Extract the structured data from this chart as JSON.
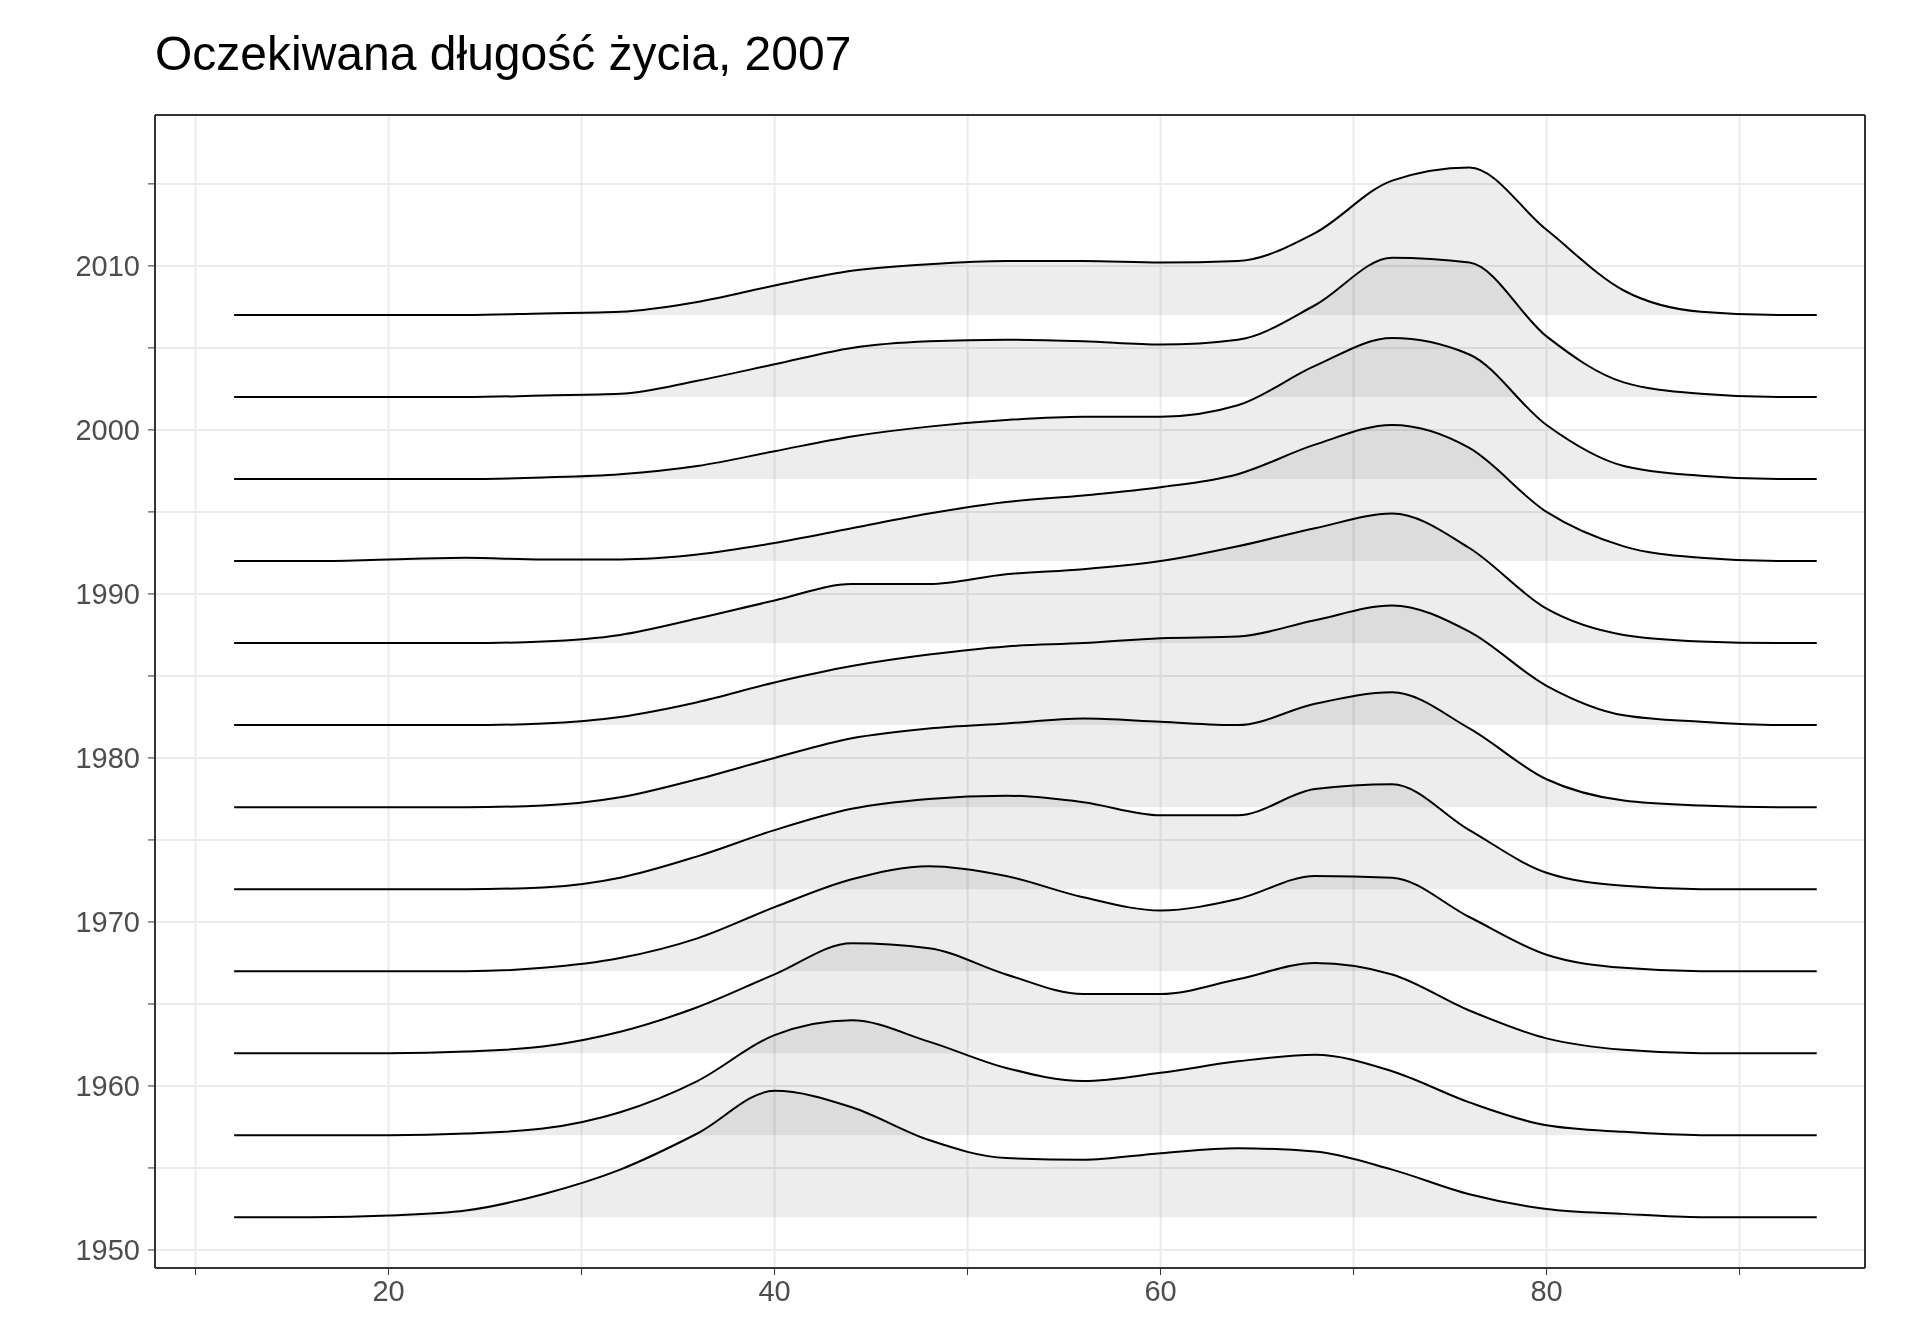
{
  "chart_data": {
    "type": "area",
    "title": "Oczekiwana długość życia, 2007",
    "x": [
      12,
      16,
      20,
      24,
      28,
      32,
      36,
      40,
      44,
      48,
      52,
      56,
      60,
      64,
      68,
      72,
      76,
      80,
      84,
      88,
      92,
      94
    ],
    "series": [
      {
        "color": "#000000",
        "values": [
          1952,
          1952,
          1952.1,
          1952.4,
          1953.4,
          1954.9,
          1957.1,
          1959.7,
          1958.7,
          1956.7,
          1955.6,
          1955.5,
          1955.9,
          1956.2,
          1956,
          1954.9,
          1953.4,
          1952.5,
          1952.2,
          1952,
          1952,
          1952
        ]
      },
      {
        "color": "#000000",
        "values": [
          1957,
          1957,
          1957,
          1957.1,
          1957.4,
          1958.4,
          1960.3,
          1963.1,
          1964,
          1962.7,
          1961.1,
          1960.3,
          1960.8,
          1961.5,
          1961.9,
          1960.9,
          1959,
          1957.6,
          1957.2,
          1957,
          1957,
          1957
        ]
      },
      {
        "color": "#000000",
        "values": [
          1962,
          1962,
          1962,
          1962.1,
          1962.4,
          1963.3,
          1964.8,
          1966.8,
          1968.7,
          1968.4,
          1966.8,
          1965.6,
          1965.6,
          1966.5,
          1967.5,
          1966.8,
          1964.6,
          1962.9,
          1962.2,
          1962,
          1962,
          1962
        ]
      },
      {
        "color": "#000000",
        "values": [
          1967,
          1967,
          1967,
          1967,
          1967.2,
          1967.8,
          1969,
          1970.9,
          1972.6,
          1973.4,
          1972.8,
          1971.5,
          1970.7,
          1971.4,
          1972.8,
          1972.7,
          1970.3,
          1968,
          1967.2,
          1967,
          1967,
          1967
        ]
      },
      {
        "color": "#000000",
        "values": [
          1972,
          1972,
          1972,
          1972,
          1972.1,
          1972.7,
          1974,
          1975.6,
          1976.9,
          1977.5,
          1977.7,
          1977.3,
          1976.5,
          1976.5,
          1978.1,
          1978.4,
          1975.6,
          1973,
          1972.2,
          1972,
          1972,
          1972
        ]
      },
      {
        "color": "#000000",
        "values": [
          1977,
          1977,
          1977,
          1977,
          1977.1,
          1977.6,
          1978.7,
          1980,
          1981.2,
          1981.8,
          1982.1,
          1982.4,
          1982.2,
          1982,
          1983.3,
          1984,
          1981.8,
          1978.7,
          1977.4,
          1977.1,
          1977,
          1977
        ]
      },
      {
        "color": "#000000",
        "values": [
          1982,
          1982,
          1982,
          1982,
          1982.1,
          1982.5,
          1983.4,
          1984.6,
          1985.6,
          1986.3,
          1986.8,
          1987,
          1987.3,
          1987.4,
          1988.4,
          1989.3,
          1987.7,
          1984.4,
          1982.6,
          1982.2,
          1982,
          1982
        ]
      },
      {
        "color": "#000000",
        "values": [
          1987,
          1987,
          1987,
          1987,
          1987.1,
          1987.5,
          1988.5,
          1989.6,
          1990.6,
          1990.6,
          1991.2,
          1991.5,
          1992,
          1992.9,
          1994,
          1994.9,
          1992.8,
          1989.1,
          1987.5,
          1987.1,
          1987,
          1987
        ]
      },
      {
        "color": "#000000",
        "values": [
          1992,
          1992,
          1992.1,
          1992.2,
          1992.1,
          1992.1,
          1992.4,
          1993.1,
          1994,
          1994.9,
          1995.6,
          1996,
          1996.5,
          1997.3,
          1999.1,
          2000.3,
          1998.9,
          1995,
          1992.9,
          1992.2,
          1992,
          1992
        ]
      },
      {
        "color": "#000000",
        "values": [
          1997,
          1997,
          1997,
          1997,
          1997.1,
          1997.3,
          1997.8,
          1998.7,
          1999.6,
          2000.2,
          2000.6,
          2000.8,
          2000.8,
          2001.5,
          2003.9,
          2005.6,
          2004.6,
          2000.3,
          1997.8,
          1997.2,
          1997,
          1997
        ]
      },
      {
        "color": "#000000",
        "values": [
          2002,
          2002,
          2002,
          2002,
          2002.1,
          2002.2,
          2003,
          2004,
          2005,
          2005.4,
          2005.5,
          2005.4,
          2005.2,
          2005.5,
          2007.6,
          2010.5,
          2010.2,
          2005.7,
          2002.9,
          2002.2,
          2002,
          2002
        ]
      },
      {
        "color": "#000000",
        "values": [
          2007,
          2007,
          2007,
          2007,
          2007.1,
          2007.2,
          2007.8,
          2008.8,
          2009.7,
          2010.1,
          2010.3,
          2010.3,
          2010.2,
          2010.3,
          2012,
          2015.2,
          2016,
          2012.2,
          2008.5,
          2007.2,
          2007,
          2007
        ]
      }
    ],
    "xlim": [
      7.9,
      96.5
    ],
    "xticks": [
      {
        "value": 10,
        "label": null
      },
      20,
      {
        "value": 30,
        "label": null
      },
      40,
      {
        "value": 50,
        "label": null
      },
      60,
      {
        "value": 70,
        "label": null
      },
      80,
      {
        "value": 90,
        "label": null
      }
    ],
    "ylim": [
      1948.9,
      2019.2
    ],
    "yticks": [
      1950,
      {
        "value": 1955,
        "label": null
      },
      1960,
      {
        "value": 1965,
        "label": null
      },
      1970,
      {
        "value": 1975,
        "label": null
      },
      1980,
      {
        "value": 1985,
        "label": null
      },
      1990,
      {
        "value": 1995,
        "label": null
      },
      2000,
      {
        "value": 2005,
        "label": null
      },
      2010,
      {
        "value": 2015,
        "label": null
      }
    ],
    "grid": true
  }
}
